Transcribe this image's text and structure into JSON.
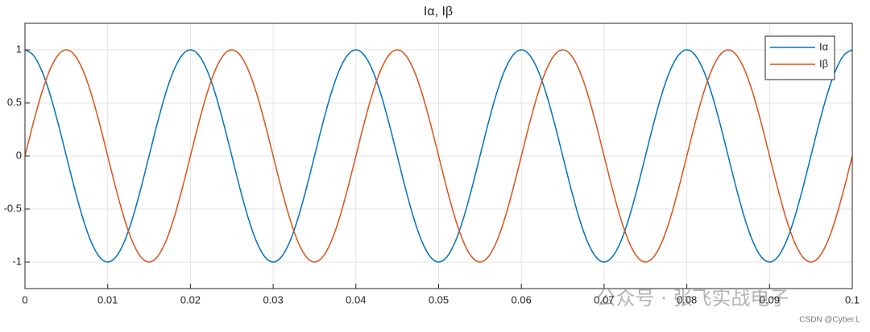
{
  "chart_data": {
    "type": "line",
    "title": "Iα, Iβ",
    "x": [
      0,
      0.001,
      0.002,
      0.003,
      0.004,
      0.005,
      0.006,
      0.007,
      0.008,
      0.009,
      0.01,
      0.011,
      0.012,
      0.013,
      0.014,
      0.015,
      0.016,
      0.017,
      0.018,
      0.019,
      0.02,
      0.021,
      0.022,
      0.023,
      0.024,
      0.025,
      0.026,
      0.027,
      0.028,
      0.029,
      0.03,
      0.031,
      0.032,
      0.033,
      0.034,
      0.035,
      0.036,
      0.037,
      0.038,
      0.039,
      0.04,
      0.041,
      0.042,
      0.043,
      0.044,
      0.045,
      0.046,
      0.047,
      0.048,
      0.049,
      0.05,
      0.051,
      0.052,
      0.053,
      0.054,
      0.055,
      0.056,
      0.057,
      0.058,
      0.059,
      0.06,
      0.061,
      0.062,
      0.063,
      0.064,
      0.065,
      0.066,
      0.067,
      0.068,
      0.069,
      0.07,
      0.071,
      0.072,
      0.073,
      0.074,
      0.075,
      0.076,
      0.077,
      0.078,
      0.079,
      0.08,
      0.081,
      0.082,
      0.083,
      0.084,
      0.085,
      0.086,
      0.087,
      0.088,
      0.089,
      0.09,
      0.091,
      0.092,
      0.093,
      0.094,
      0.095,
      0.096,
      0.097,
      0.098,
      0.099,
      0.1
    ],
    "series": [
      {
        "name": "Iα",
        "color": "#0072BD",
        "values": [
          1,
          0.951,
          0.809,
          0.588,
          0.309,
          0,
          -0.309,
          -0.588,
          -0.809,
          -0.951,
          -1,
          -0.951,
          -0.809,
          -0.588,
          -0.309,
          0,
          0.309,
          0.588,
          0.809,
          0.951,
          1,
          0.951,
          0.809,
          0.588,
          0.309,
          0,
          -0.309,
          -0.588,
          -0.809,
          -0.951,
          -1,
          -0.951,
          -0.809,
          -0.588,
          -0.309,
          0,
          0.309,
          0.588,
          0.809,
          0.951,
          1,
          0.951,
          0.809,
          0.588,
          0.309,
          0,
          -0.309,
          -0.588,
          -0.809,
          -0.951,
          -1,
          -0.951,
          -0.809,
          -0.588,
          -0.309,
          0,
          0.309,
          0.588,
          0.809,
          0.951,
          1,
          0.951,
          0.809,
          0.588,
          0.309,
          0,
          -0.309,
          -0.588,
          -0.809,
          -0.951,
          -1,
          -0.951,
          -0.809,
          -0.588,
          -0.309,
          0,
          0.309,
          0.588,
          0.809,
          0.951,
          1,
          0.951,
          0.809,
          0.588,
          0.309,
          0,
          -0.309,
          -0.588,
          -0.809,
          -0.951,
          -1,
          -0.951,
          -0.809,
          -0.588,
          -0.309,
          0,
          0.309,
          0.588,
          0.809,
          0.951,
          1
        ]
      },
      {
        "name": "Iβ",
        "color": "#D95319",
        "values": [
          0,
          0.309,
          0.588,
          0.809,
          0.951,
          1,
          0.951,
          0.809,
          0.588,
          0.309,
          0,
          -0.309,
          -0.588,
          -0.809,
          -0.951,
          -1,
          -0.951,
          -0.809,
          -0.588,
          -0.309,
          0,
          0.309,
          0.588,
          0.809,
          0.951,
          1,
          0.951,
          0.809,
          0.588,
          0.309,
          0,
          -0.309,
          -0.588,
          -0.809,
          -0.951,
          -1,
          -0.951,
          -0.809,
          -0.588,
          -0.309,
          0,
          0.309,
          0.588,
          0.809,
          0.951,
          1,
          0.951,
          0.809,
          0.588,
          0.309,
          0,
          -0.309,
          -0.588,
          -0.809,
          -0.951,
          -1,
          -0.951,
          -0.809,
          -0.588,
          -0.309,
          0,
          0.309,
          0.588,
          0.809,
          0.951,
          1,
          0.951,
          0.809,
          0.588,
          0.309,
          0,
          -0.309,
          -0.588,
          -0.809,
          -0.951,
          -1,
          -0.951,
          -0.809,
          -0.588,
          -0.309,
          0,
          0.309,
          0.588,
          0.809,
          0.951,
          1,
          0.951,
          0.809,
          0.588,
          0.309,
          0,
          -0.309,
          -0.588,
          -0.809,
          -0.951,
          -1,
          -0.951,
          -0.809,
          -0.588,
          -0.309,
          0
        ]
      }
    ],
    "xlim": [
      0,
      0.1
    ],
    "xticks": [
      0,
      0.01,
      0.02,
      0.03,
      0.04,
      0.05,
      0.06,
      0.07,
      0.08,
      0.09,
      0.1
    ],
    "ylim": [
      -1.25,
      1.25
    ],
    "yticks": [
      -1,
      -0.5,
      0,
      0.5,
      1
    ],
    "grid": true,
    "legend": "top-right",
    "watermark": "公众号 · 张飞实战电子",
    "credit": "CSDN @Cyber.L"
  }
}
